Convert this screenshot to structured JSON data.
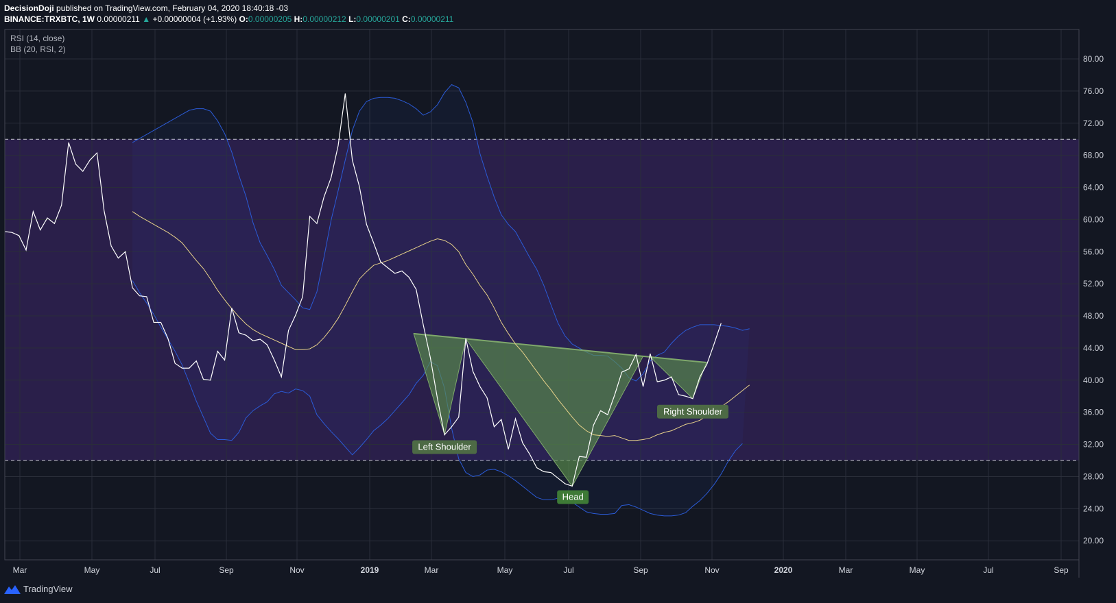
{
  "header": {
    "author": "DecisionDoji",
    "published": "published on TradingView.com, February 04, 2020 18:40:18 -03",
    "symbol": "BINANCE:TRXBTC, 1W",
    "last": "0.00000211",
    "change": "+0.00000004 (+1.93%)",
    "o_label": "O:",
    "o_value": "0.00000205",
    "h_label": "H:",
    "h_value": "0.00000212",
    "l_label": "L:",
    "l_value": "0.00000201",
    "c_label": "C:",
    "c_value": "0.00000211"
  },
  "indicators": {
    "rsi_label": "RSI (14, close)",
    "bb_label": "BB (20, RSI, 2)"
  },
  "footer": {
    "brand": "TradingView"
  },
  "colors": {
    "background": "#131722",
    "zone": "#2a1f4a",
    "rsi": "#ffffff",
    "bb_band": "#2b5bd7",
    "bb_basis": "#e8d28a",
    "hs_fill": "#5b8f4a",
    "label_bg": "#4d6a45",
    "head_label_bg": "#3e7a36"
  },
  "chart_data": {
    "type": "line",
    "y_ticks": [
      "80.00",
      "76.00",
      "72.00",
      "68.00",
      "64.00",
      "60.00",
      "56.00",
      "52.00",
      "48.00",
      "44.00",
      "40.00",
      "36.00",
      "32.00",
      "28.00",
      "24.00",
      "20.00"
    ],
    "ylim": [
      18,
      82
    ],
    "x_ticks": [
      "Mar",
      "May",
      "Jul",
      "Sep",
      "Nov",
      "2019",
      "Mar",
      "May",
      "Jul",
      "Sep",
      "Nov",
      "2020",
      "Mar",
      "May",
      "Jul",
      "Sep"
    ],
    "levels": [
      70,
      30
    ],
    "series": [
      {
        "values": [
          58.5,
          58.4,
          58,
          56.2,
          61,
          58.7,
          60.2,
          59.5,
          61.8,
          69.6,
          66.9,
          66,
          67.4,
          68.3,
          61.1,
          56.7,
          55.2,
          56,
          51.5,
          50.5,
          50.4,
          47.2,
          47.2,
          45.2,
          42.1,
          41.5,
          41.5,
          42.4,
          40.1,
          40,
          43.6,
          42.5,
          49,
          45.9,
          45.6,
          44.9,
          45.1,
          44.4,
          42.5,
          40.4,
          46.2,
          48.1,
          50.4,
          60.4,
          59.5,
          62.8,
          65.2,
          69.2,
          75.7,
          67.4,
          64.1,
          59.4,
          57.1,
          54.7,
          54,
          53.3,
          53.6,
          52.8,
          51.3,
          46.9,
          42.8,
          37.7,
          33.2,
          34.2,
          35.4,
          45.2,
          41.1,
          39.2,
          37.8,
          34.2,
          35.1,
          31.4,
          35.2,
          32.2,
          30.8,
          29.1,
          28.6,
          28.5,
          27.8,
          27.1,
          26.8,
          30.5,
          30.4,
          34.4,
          36.2,
          35.7,
          38.2,
          41,
          41.4,
          43.2,
          39.2,
          43.3,
          39.8,
          40,
          40.4,
          38.2,
          38,
          37.7,
          40.4,
          42,
          44.5,
          47.1
        ]
      },
      {
        "values": [
          69.6,
          70.1,
          70.6,
          71.1,
          71.6,
          72.1,
          72.6,
          73.1,
          73.6,
          73.8,
          73.8,
          73.5,
          72.3,
          70.7,
          68.4,
          65.5,
          62.9,
          59.6,
          57.1,
          55.5,
          53.8,
          51.8,
          50.9,
          50,
          49,
          48.8,
          51,
          55.3,
          59.9,
          63.6,
          67.4,
          71.1,
          73.5,
          74.7,
          75.1,
          75.2,
          75.2,
          75.1,
          74.8,
          74.4,
          73.8,
          73,
          73.4,
          74.3,
          75.8,
          76.8,
          76.4,
          74.6,
          72.1,
          68.2,
          65.4,
          62.8,
          60.6,
          59.4,
          58.5,
          56.9,
          55.3,
          53.8,
          51.8,
          49.4,
          47.1,
          45.5,
          44.5,
          44,
          43.5,
          43.1,
          43.1,
          43,
          42.3,
          41.5,
          40.3,
          39.9,
          40.8,
          42.4,
          43.1,
          43.5,
          44.6,
          45.5,
          46.2,
          46.6,
          46.9,
          46.9,
          46.9,
          46.8,
          46.7,
          46.5,
          46.2,
          46.4
        ]
      },
      {
        "values": [
          52.4,
          50.9,
          49.6,
          48.2,
          46.6,
          45.1,
          43.6,
          41.9,
          39.7,
          37.4,
          35.4,
          33.4,
          32.6,
          32.6,
          32.5,
          33.5,
          35.3,
          36.2,
          36.8,
          37.3,
          38.3,
          38.6,
          38.4,
          38.9,
          38.7,
          38,
          35.7,
          34.6,
          33.6,
          32.7,
          31.7,
          30.7,
          31.6,
          32.6,
          33.7,
          34.4,
          35.2,
          36.2,
          37.2,
          38.2,
          39.6,
          40.6,
          42.3,
          41.8,
          39,
          34,
          30.2,
          28.5,
          28,
          28.2,
          28.8,
          28.9,
          28.6,
          28.1,
          27.5,
          26.8,
          26.1,
          25.4,
          25.1,
          25.1,
          25.3,
          25.1,
          24.8,
          24.2,
          23.6,
          23.4,
          23.3,
          23.3,
          23.4,
          24.4,
          24.5,
          24.2,
          23.8,
          23.4,
          23.2,
          23.1,
          23.1,
          23.2,
          23.5,
          24.3,
          25,
          25.9,
          27,
          28.3,
          29.9,
          31.2,
          32.1
        ]
      },
      {
        "values": [
          61,
          60.4,
          59.9,
          59.4,
          58.9,
          58.4,
          57.8,
          57.1,
          56,
          54.9,
          53.9,
          52.6,
          51.2,
          50,
          48.9,
          47.9,
          47,
          46.3,
          45.8,
          45.4,
          45,
          44.6,
          44.2,
          43.8,
          43.8,
          43.9,
          44.4,
          45.3,
          46.4,
          47.7,
          49.3,
          51,
          52.6,
          53.5,
          54.3,
          54.6,
          54.9,
          55.3,
          55.7,
          56.1,
          56.5,
          56.9,
          57.3,
          57.6,
          57.4,
          56.9,
          56,
          54.4,
          53.2,
          51.8,
          50.6,
          49,
          47.2,
          45.8,
          44.5,
          43.5,
          42.3,
          41.1,
          39.9,
          38.8,
          37.6,
          36.5,
          35.4,
          34.4,
          33.7,
          33.2,
          33.1,
          33,
          33.1,
          32.8,
          32.5,
          32.5,
          32.6,
          32.8,
          33.2,
          33.5,
          33.7,
          34.1,
          34.5,
          34.7,
          35,
          35.6,
          36.2,
          36.7,
          37.3,
          38,
          38.7,
          39.4
        ]
      }
    ],
    "annotations": [
      "Left Shoulder",
      "Head",
      "Right Shoulder"
    ]
  }
}
